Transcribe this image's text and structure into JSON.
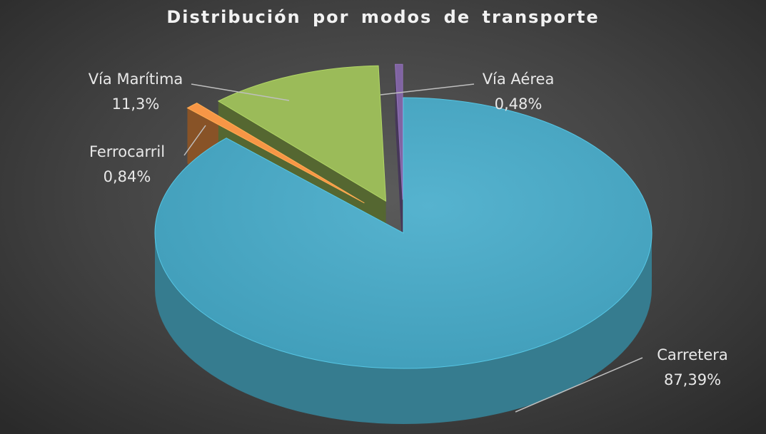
{
  "chart_data": {
    "type": "pie",
    "title": "Distribución por modos de transporte",
    "three_d": true,
    "exploded": true,
    "slices": [
      {
        "name": "Carretera",
        "value": 87.39,
        "label": "87,39%",
        "color": "#4bacc6"
      },
      {
        "name": "Ferrocarril",
        "value": 0.84,
        "label": "0,84%",
        "color": "#f79646"
      },
      {
        "name": "Vía Marítima",
        "value": 11.3,
        "label": "11,3%",
        "color": "#9bbb59"
      },
      {
        "name": "Vía Aérea",
        "value": 0.48,
        "label": "0,48%",
        "color": "#8064a2"
      }
    ]
  }
}
